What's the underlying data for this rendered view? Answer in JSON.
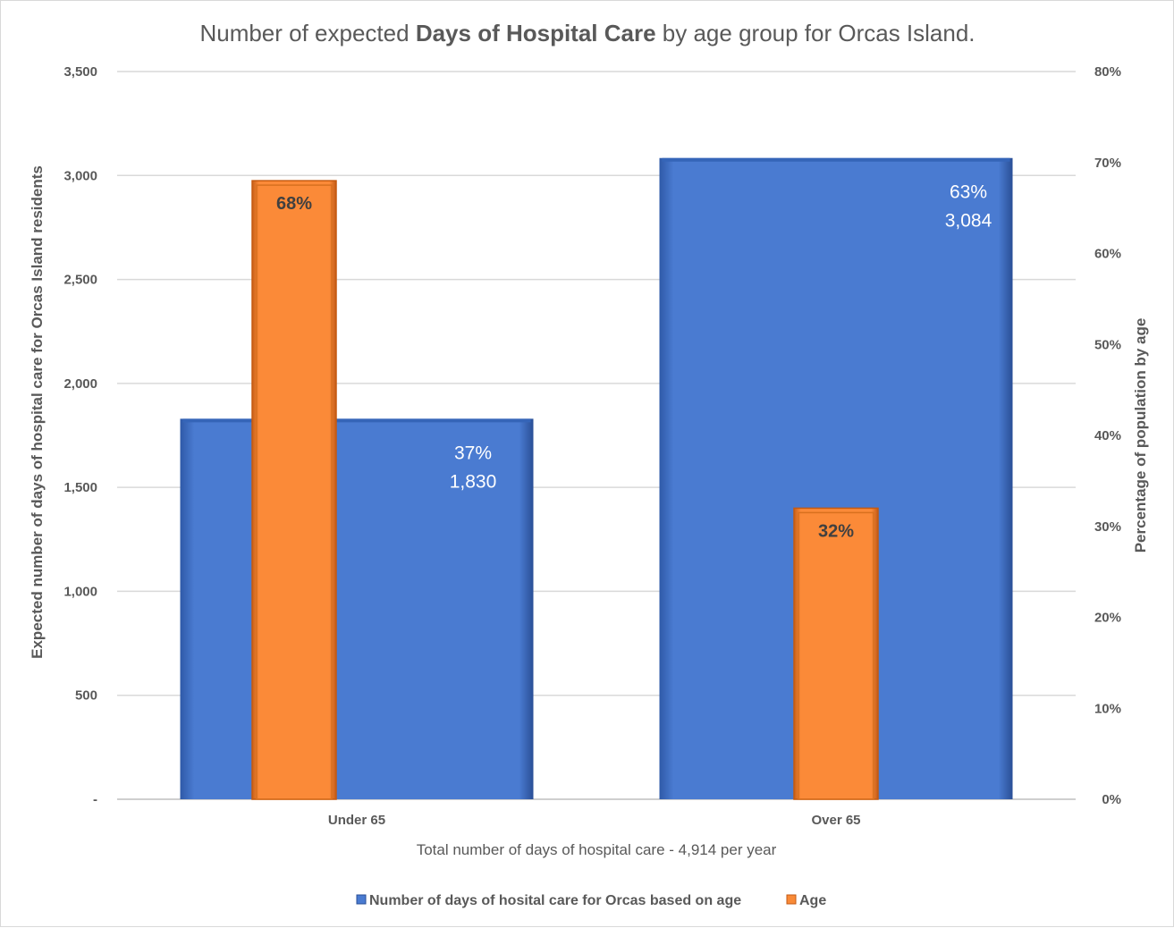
{
  "chart_data": {
    "type": "bar",
    "title_prefix": "Number of expected ",
    "title_bold": "Days of Hospital Care",
    "title_suffix": " by age group for Orcas Island.",
    "categories": [
      "Under 65",
      "Over 65"
    ],
    "xlabel": "Total number of days of hospital care  - 4,914 per year",
    "ylabel": "Expected number of days of hospital care for Orcas Island residents",
    "y2label": "Percentage of population by age",
    "ylim": [
      0,
      3500
    ],
    "y2lim": [
      0,
      0.8
    ],
    "yticks": [
      "-",
      "500",
      "1,000",
      "1,500",
      "2,000",
      "2,500",
      "3,000",
      "3,500"
    ],
    "y2ticks": [
      "0%",
      "10%",
      "20%",
      "30%",
      "40%",
      "50%",
      "60%",
      "70%",
      "80%"
    ],
    "grid": true,
    "legend_position": "bottom",
    "series": [
      {
        "name": "Number of days of hosital care for Orcas based on age",
        "axis": "primary",
        "color": "#4a7bd1",
        "values": [
          1830,
          3084
        ],
        "labels": [
          [
            "37%",
            "1,830"
          ],
          [
            "63%",
            "3,084"
          ]
        ]
      },
      {
        "name": "Age",
        "axis": "secondary",
        "color": "#f98a37",
        "values": [
          0.68,
          0.32
        ],
        "labels": [
          "68%",
          "32%"
        ]
      }
    ]
  }
}
